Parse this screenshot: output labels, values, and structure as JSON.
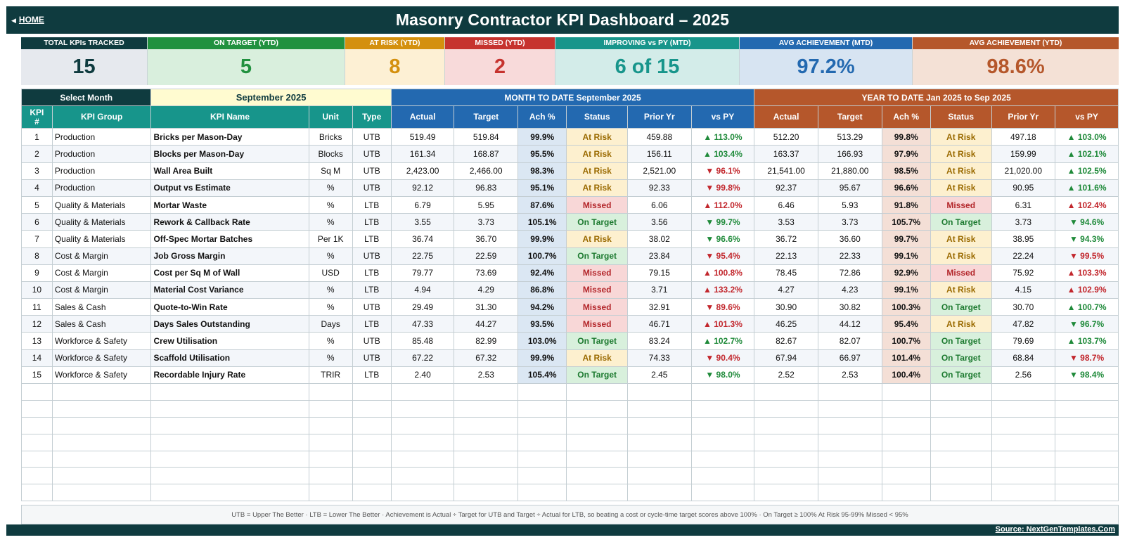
{
  "header": {
    "home_label": "HOME",
    "home_icon": "left-triangle-icon",
    "title": "Masonry Contractor KPI Dashboard   –   2025"
  },
  "kpis": [
    {
      "label": "TOTAL KPIs TRACKED",
      "value": "15",
      "head_color": "#0f3b3f",
      "bg_color": "#e6e9ee",
      "text_color": "#0f3b3f"
    },
    {
      "label": "ON TARGET (YTD)",
      "value": "5",
      "head_color": "#21913f",
      "bg_color": "#d9efdd",
      "text_color": "#21913f"
    },
    {
      "label": "AT RISK (YTD)",
      "value": "8",
      "head_color": "#d4900e",
      "bg_color": "#fdf0d4",
      "text_color": "#d4900e"
    },
    {
      "label": "MISSED (YTD)",
      "value": "2",
      "head_color": "#c6332e",
      "bg_color": "#f8dada",
      "text_color": "#c6332e"
    },
    {
      "label": "IMPROVING vs PY (MTD)",
      "value": "6 of 15",
      "head_color": "#17958b",
      "bg_color": "#d3ece9",
      "text_color": "#17958b"
    },
    {
      "label": "AVG ACHIEVEMENT (MTD)",
      "value": "97.2%",
      "head_color": "#2369b0",
      "bg_color": "#d7e4f2",
      "text_color": "#2369b0"
    },
    {
      "label": "AVG ACHIEVEMENT (YTD)",
      "value": "98.6%",
      "head_color": "#b5572b",
      "bg_color": "#f4e1d6",
      "text_color": "#b5572b"
    }
  ],
  "controls": {
    "select_month_label": "Select Month",
    "selected_month": "September 2025"
  },
  "sections": {
    "mtd_label": "MONTH TO DATE      September 2025",
    "ytd_label": "YEAR TO DATE      Jan 2025  to  Sep 2025"
  },
  "columns": {
    "num": "KPI #",
    "group": "KPI Group",
    "name": "KPI Name",
    "unit": "Unit",
    "type": "Type",
    "actual": "Actual",
    "target": "Target",
    "ach": "Ach %",
    "status": "Status",
    "prior": "Prior Yr",
    "vspy": "vs PY"
  },
  "rows": [
    {
      "num": "1",
      "group": "Production",
      "name": "Bricks per Mason-Day",
      "unit": "Bricks",
      "type": "UTB",
      "m": {
        "actual": "519.49",
        "target": "519.84",
        "ach": "99.9%",
        "status": "At Risk",
        "prior": "459.88",
        "vspy": "▲ 113.0%",
        "trend": "up"
      },
      "y": {
        "actual": "512.20",
        "target": "513.29",
        "ach": "99.8%",
        "status": "At Risk",
        "prior": "497.18",
        "vspy": "▲ 103.0%",
        "trend": "up"
      }
    },
    {
      "num": "2",
      "group": "Production",
      "name": "Blocks per Mason-Day",
      "unit": "Blocks",
      "type": "UTB",
      "m": {
        "actual": "161.34",
        "target": "168.87",
        "ach": "95.5%",
        "status": "At Risk",
        "prior": "156.11",
        "vspy": "▲ 103.4%",
        "trend": "up"
      },
      "y": {
        "actual": "163.37",
        "target": "166.93",
        "ach": "97.9%",
        "status": "At Risk",
        "prior": "159.99",
        "vspy": "▲ 102.1%",
        "trend": "up"
      }
    },
    {
      "num": "3",
      "group": "Production",
      "name": "Wall Area Built",
      "unit": "Sq M",
      "type": "UTB",
      "m": {
        "actual": "2,423.00",
        "target": "2,466.00",
        "ach": "98.3%",
        "status": "At Risk",
        "prior": "2,521.00",
        "vspy": "▼ 96.1%",
        "trend": "down"
      },
      "y": {
        "actual": "21,541.00",
        "target": "21,880.00",
        "ach": "98.5%",
        "status": "At Risk",
        "prior": "21,020.00",
        "vspy": "▲ 102.5%",
        "trend": "up"
      }
    },
    {
      "num": "4",
      "group": "Production",
      "name": "Output vs Estimate",
      "unit": "%",
      "type": "UTB",
      "m": {
        "actual": "92.12",
        "target": "96.83",
        "ach": "95.1%",
        "status": "At Risk",
        "prior": "92.33",
        "vspy": "▼ 99.8%",
        "trend": "down"
      },
      "y": {
        "actual": "92.37",
        "target": "95.67",
        "ach": "96.6%",
        "status": "At Risk",
        "prior": "90.95",
        "vspy": "▲ 101.6%",
        "trend": "up"
      }
    },
    {
      "num": "5",
      "group": "Quality & Materials",
      "name": "Mortar Waste",
      "unit": "%",
      "type": "LTB",
      "m": {
        "actual": "6.79",
        "target": "5.95",
        "ach": "87.6%",
        "status": "Missed",
        "prior": "6.06",
        "vspy": "▲ 112.0%",
        "trend": "up-red"
      },
      "y": {
        "actual": "6.46",
        "target": "5.93",
        "ach": "91.8%",
        "status": "Missed",
        "prior": "6.31",
        "vspy": "▲ 102.4%",
        "trend": "up-red"
      }
    },
    {
      "num": "6",
      "group": "Quality & Materials",
      "name": "Rework & Callback Rate",
      "unit": "%",
      "type": "LTB",
      "m": {
        "actual": "3.55",
        "target": "3.73",
        "ach": "105.1%",
        "status": "On Target",
        "prior": "3.56",
        "vspy": "▼ 99.7%",
        "trend": "down-green"
      },
      "y": {
        "actual": "3.53",
        "target": "3.73",
        "ach": "105.7%",
        "status": "On Target",
        "prior": "3.73",
        "vspy": "▼ 94.6%",
        "trend": "down-green"
      }
    },
    {
      "num": "7",
      "group": "Quality & Materials",
      "name": "Off-Spec Mortar Batches",
      "unit": "Per 1K",
      "type": "LTB",
      "m": {
        "actual": "36.74",
        "target": "36.70",
        "ach": "99.9%",
        "status": "At Risk",
        "prior": "38.02",
        "vspy": "▼ 96.6%",
        "trend": "down-green"
      },
      "y": {
        "actual": "36.72",
        "target": "36.60",
        "ach": "99.7%",
        "status": "At Risk",
        "prior": "38.95",
        "vspy": "▼ 94.3%",
        "trend": "down-green"
      }
    },
    {
      "num": "8",
      "group": "Cost & Margin",
      "name": "Job Gross Margin",
      "unit": "%",
      "type": "UTB",
      "m": {
        "actual": "22.75",
        "target": "22.59",
        "ach": "100.7%",
        "status": "On Target",
        "prior": "23.84",
        "vspy": "▼ 95.4%",
        "trend": "down"
      },
      "y": {
        "actual": "22.13",
        "target": "22.33",
        "ach": "99.1%",
        "status": "At Risk",
        "prior": "22.24",
        "vspy": "▼ 99.5%",
        "trend": "down"
      }
    },
    {
      "num": "9",
      "group": "Cost & Margin",
      "name": "Cost per Sq M of Wall",
      "unit": "USD",
      "type": "LTB",
      "m": {
        "actual": "79.77",
        "target": "73.69",
        "ach": "92.4%",
        "status": "Missed",
        "prior": "79.15",
        "vspy": "▲ 100.8%",
        "trend": "up-red"
      },
      "y": {
        "actual": "78.45",
        "target": "72.86",
        "ach": "92.9%",
        "status": "Missed",
        "prior": "75.92",
        "vspy": "▲ 103.3%",
        "trend": "up-red"
      }
    },
    {
      "num": "10",
      "group": "Cost & Margin",
      "name": "Material Cost Variance",
      "unit": "%",
      "type": "LTB",
      "m": {
        "actual": "4.94",
        "target": "4.29",
        "ach": "86.8%",
        "status": "Missed",
        "prior": "3.71",
        "vspy": "▲ 133.2%",
        "trend": "up-red"
      },
      "y": {
        "actual": "4.27",
        "target": "4.23",
        "ach": "99.1%",
        "status": "At Risk",
        "prior": "4.15",
        "vspy": "▲ 102.9%",
        "trend": "up-red"
      }
    },
    {
      "num": "11",
      "group": "Sales & Cash",
      "name": "Quote-to-Win Rate",
      "unit": "%",
      "type": "UTB",
      "m": {
        "actual": "29.49",
        "target": "31.30",
        "ach": "94.2%",
        "status": "Missed",
        "prior": "32.91",
        "vspy": "▼ 89.6%",
        "trend": "down"
      },
      "y": {
        "actual": "30.90",
        "target": "30.82",
        "ach": "100.3%",
        "status": "On Target",
        "prior": "30.70",
        "vspy": "▲ 100.7%",
        "trend": "up"
      }
    },
    {
      "num": "12",
      "group": "Sales & Cash",
      "name": "Days Sales Outstanding",
      "unit": "Days",
      "type": "LTB",
      "m": {
        "actual": "47.33",
        "target": "44.27",
        "ach": "93.5%",
        "status": "Missed",
        "prior": "46.71",
        "vspy": "▲ 101.3%",
        "trend": "up-red"
      },
      "y": {
        "actual": "46.25",
        "target": "44.12",
        "ach": "95.4%",
        "status": "At Risk",
        "prior": "47.82",
        "vspy": "▼ 96.7%",
        "trend": "down-green"
      }
    },
    {
      "num": "13",
      "group": "Workforce & Safety",
      "name": "Crew Utilisation",
      "unit": "%",
      "type": "UTB",
      "m": {
        "actual": "85.48",
        "target": "82.99",
        "ach": "103.0%",
        "status": "On Target",
        "prior": "83.24",
        "vspy": "▲ 102.7%",
        "trend": "up"
      },
      "y": {
        "actual": "82.67",
        "target": "82.07",
        "ach": "100.7%",
        "status": "On Target",
        "prior": "79.69",
        "vspy": "▲ 103.7%",
        "trend": "up"
      }
    },
    {
      "num": "14",
      "group": "Workforce & Safety",
      "name": "Scaffold Utilisation",
      "unit": "%",
      "type": "UTB",
      "m": {
        "actual": "67.22",
        "target": "67.32",
        "ach": "99.9%",
        "status": "At Risk",
        "prior": "74.33",
        "vspy": "▼ 90.4%",
        "trend": "down"
      },
      "y": {
        "actual": "67.94",
        "target": "66.97",
        "ach": "101.4%",
        "status": "On Target",
        "prior": "68.84",
        "vspy": "▼ 98.7%",
        "trend": "down"
      }
    },
    {
      "num": "15",
      "group": "Workforce & Safety",
      "name": "Recordable Injury Rate",
      "unit": "TRIR",
      "type": "LTB",
      "m": {
        "actual": "2.40",
        "target": "2.53",
        "ach": "105.4%",
        "status": "On Target",
        "prior": "2.45",
        "vspy": "▼ 98.0%",
        "trend": "down-green"
      },
      "y": {
        "actual": "2.52",
        "target": "2.53",
        "ach": "100.4%",
        "status": "On Target",
        "prior": "2.56",
        "vspy": "▼ 98.4%",
        "trend": "down-green"
      }
    }
  ],
  "footnote": "UTB = Upper The Better   ·   LTB = Lower The Better   ·   Achievement is Actual ÷ Target for UTB and Target ÷ Actual for LTB, so beating a cost or cycle-time target scores above 100%   ·   On Target ≥ 100%    At Risk 95-99%    Missed < 95%",
  "source": "Source: NextGenTemplates.Com",
  "colors": {
    "dark": "#0f3b3f",
    "teal_header": "#17958b",
    "mtd_header": "#2369b0",
    "ytd_header": "#b5572b",
    "select_bg": "#fffbd0"
  }
}
